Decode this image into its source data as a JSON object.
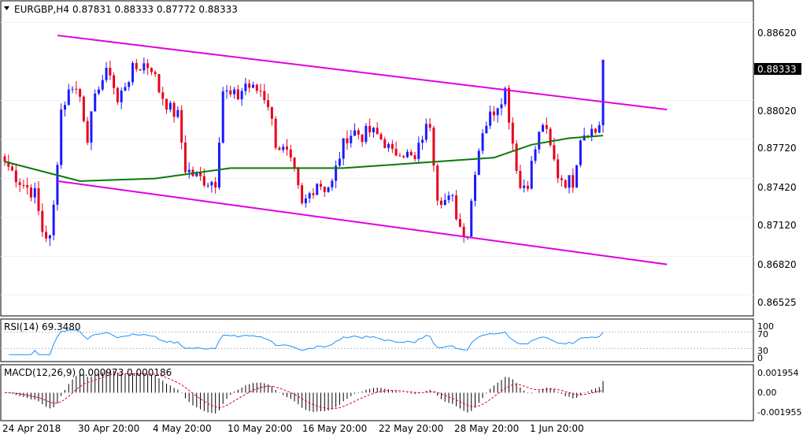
{
  "header": {
    "symbol": "EURGBP,H4",
    "ohlc": "0.87831 0.88333 0.87772 0.88333"
  },
  "price_axis": {
    "ticks": [
      "0.88620",
      "0.88020",
      "0.87720",
      "0.87420",
      "0.87120",
      "0.86820",
      "0.86525"
    ],
    "current_label": "0.88333"
  },
  "rsi": {
    "label": "RSI(14) 69.3480",
    "ticks": [
      "100",
      "70",
      "30",
      "0"
    ]
  },
  "macd": {
    "label": "MACD(12,26,9) 0.000973 0.000186",
    "ticks": [
      "0.001954",
      "0.00",
      "-0.001955"
    ]
  },
  "time_axis": {
    "labels": [
      "24 Apr 2018",
      "30 Apr 20:00",
      "4 May 20:00",
      "10 May 20:00",
      "16 May 20:00",
      "22 May 20:00",
      "28 May 20:00",
      "1 Jun 20:00"
    ]
  },
  "colors": {
    "bull": "#1a1aff",
    "bear": "#e8001c",
    "channel": "#e000e0",
    "ma": "#0a7a0a",
    "rsi_line": "#1e90ff",
    "macd_signal": "#e8001c",
    "frame": "#000000"
  },
  "chart_data": [
    {
      "type": "candlestick",
      "title": "EURGBP,H4",
      "ylim": [
        0.8637,
        0.8878
      ],
      "ohlc_header": [
        0.87831,
        0.88333,
        0.87772,
        0.88333
      ],
      "last_close": 0.88333,
      "anchors": [
        [
          0,
          0.8755
        ],
        [
          4,
          0.874
        ],
        [
          8,
          0.873
        ],
        [
          10,
          0.8702
        ],
        [
          12,
          0.8695
        ],
        [
          13,
          0.872
        ],
        [
          15,
          0.8795
        ],
        [
          18,
          0.8815
        ],
        [
          20,
          0.8805
        ],
        [
          22,
          0.8775
        ],
        [
          25,
          0.8815
        ],
        [
          28,
          0.8825
        ],
        [
          30,
          0.88
        ],
        [
          32,
          0.8815
        ],
        [
          34,
          0.8825
        ],
        [
          37,
          0.883
        ],
        [
          39,
          0.8828
        ],
        [
          41,
          0.881
        ],
        [
          44,
          0.8795
        ],
        [
          46,
          0.879
        ],
        [
          48,
          0.875
        ],
        [
          50,
          0.8745
        ],
        [
          52,
          0.8742
        ],
        [
          54,
          0.874
        ],
        [
          56,
          0.874
        ],
        [
          58,
          0.881
        ],
        [
          60,
          0.8805
        ],
        [
          62,
          0.8805
        ],
        [
          64,
          0.8815
        ],
        [
          66,
          0.881
        ],
        [
          68,
          0.881
        ],
        [
          70,
          0.88
        ],
        [
          72,
          0.877
        ],
        [
          75,
          0.876
        ],
        [
          77,
          0.8745
        ],
        [
          79,
          0.872
        ],
        [
          81,
          0.873
        ],
        [
          83,
          0.874
        ],
        [
          85,
          0.8735
        ],
        [
          87,
          0.8738
        ],
        [
          89,
          0.876
        ],
        [
          91,
          0.8775
        ],
        [
          93,
          0.8778
        ],
        [
          95,
          0.8775
        ],
        [
          97,
          0.8778
        ],
        [
          99,
          0.8775
        ],
        [
          101,
          0.877
        ],
        [
          103,
          0.876
        ],
        [
          105,
          0.8765
        ],
        [
          107,
          0.876
        ],
        [
          109,
          0.8755
        ],
        [
          111,
          0.8775
        ],
        [
          113,
          0.8785
        ],
        [
          115,
          0.873
        ],
        [
          117,
          0.8725
        ],
        [
          119,
          0.8725
        ],
        [
          121,
          0.8705
        ],
        [
          123,
          0.87
        ],
        [
          125,
          0.875
        ],
        [
          127,
          0.878
        ],
        [
          129,
          0.879
        ],
        [
          131,
          0.88
        ],
        [
          133,
          0.881
        ],
        [
          135,
          0.877
        ],
        [
          137,
          0.8735
        ],
        [
          139,
          0.874
        ],
        [
          141,
          0.8765
        ],
        [
          143,
          0.8785
        ],
        [
          145,
          0.8765
        ],
        [
          147,
          0.8745
        ],
        [
          149,
          0.874
        ],
        [
          151,
          0.874
        ],
        [
          153,
          0.8775
        ],
        [
          155,
          0.878
        ],
        [
          157,
          0.8778
        ],
        [
          158,
          0.8783
        ],
        [
          159,
          0.8833
        ]
      ],
      "moving_average_line": [
        [
          0,
          0.8755
        ],
        [
          20,
          0.874
        ],
        [
          40,
          0.8742
        ],
        [
          60,
          0.875
        ],
        [
          90,
          0.875
        ],
        [
          115,
          0.8755
        ],
        [
          130,
          0.8758
        ],
        [
          140,
          0.8768
        ],
        [
          150,
          0.8773
        ],
        [
          159,
          0.8775
        ]
      ],
      "channel_lines": [
        {
          "from": [
            14,
            0.8852
          ],
          "to": [
            176,
            0.8795
          ]
        },
        {
          "from": [
            14,
            0.874
          ],
          "to": [
            176,
            0.8676
          ]
        }
      ]
    },
    {
      "type": "line",
      "title": "RSI(14) 69.3480",
      "ylim": [
        0,
        100
      ],
      "levels": [
        70,
        30
      ],
      "last": 69.348
    },
    {
      "type": "bar",
      "title": "MACD(12,26,9) 0.000973 0.000186",
      "ylim": [
        -0.0022,
        0.0022
      ],
      "main": 0.000973,
      "signal": 0.000186
    }
  ]
}
